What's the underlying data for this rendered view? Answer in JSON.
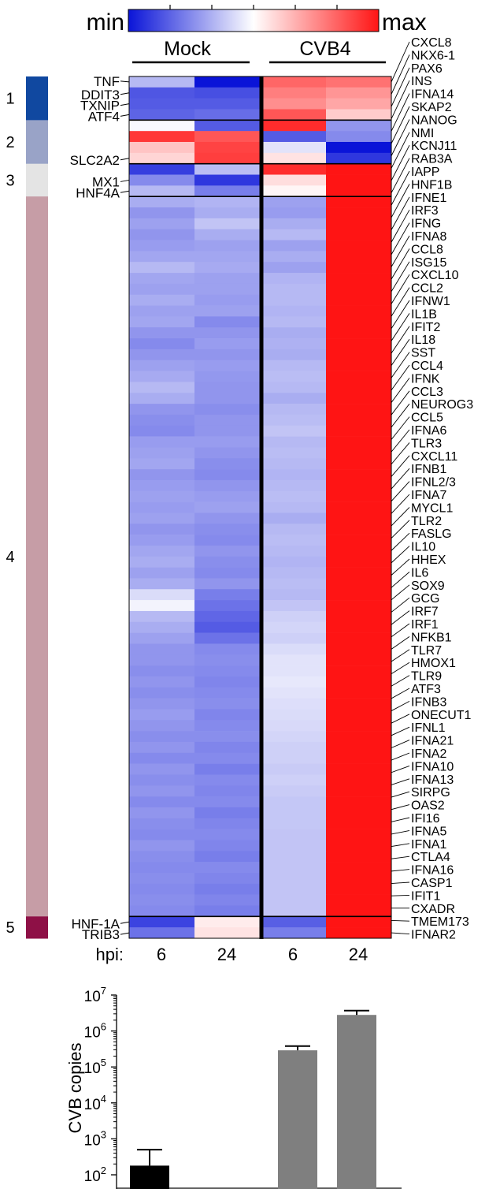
{
  "colorbar": {
    "min_label": "min",
    "max_label": "max",
    "colors": [
      "#0a14d8",
      "#ffffff",
      "#ff1414"
    ]
  },
  "heatmap": {
    "groups": [
      "Mock",
      "CVB4"
    ],
    "timepoint_label": "hpi:",
    "timepoints": [
      "6",
      "24",
      "6",
      "24"
    ],
    "clusters": [
      {
        "label": "1",
        "color": "#1048a0",
        "rows": 4
      },
      {
        "label": "2",
        "color": "#99a3c7",
        "rows": 4
      },
      {
        "label": "3",
        "color": "#e4e4e4",
        "rows": 3
      },
      {
        "label": "4",
        "color": "#c69da6",
        "rows": 66
      },
      {
        "label": "5",
        "color": "#8e1046",
        "rows": 2
      }
    ],
    "left_labels": [
      {
        "text": "TNF",
        "row": 0
      },
      {
        "text": "DDIT3",
        "row": 1
      },
      {
        "text": "TXNIP",
        "row": 2
      },
      {
        "text": "ATF4",
        "row": 3
      },
      {
        "text": "SLC2A2",
        "row": 7
      },
      {
        "text": "MX1",
        "row": 9
      },
      {
        "text": "HNF4A",
        "row": 10
      },
      {
        "text": "HNF-1A",
        "row": 77
      },
      {
        "text": "TRIB3",
        "row": 78
      }
    ],
    "right_labels": [
      "CXCL8",
      "NKX6-1",
      "PAX6",
      "INS",
      "IFNA14",
      "SKAP2",
      "NANOG",
      "NMI",
      "KCNJ11",
      "RAB3A",
      "IAPP",
      "HNF1B",
      "IFNE1",
      "IRF3",
      "IFNG",
      "IFNA8",
      "CCL8",
      "ISG15",
      "CXCL10",
      "CCL2",
      "IFNW1",
      "IL1B",
      "IFIT2",
      "IL18",
      "SST",
      "CCL4",
      "IFNK",
      "CCL3",
      "NEUROG3",
      "CCL5",
      "IFNA6",
      "TLR3",
      "CXCL11",
      "IFNB1",
      "IFNL2/3",
      "IFNA7",
      "MYCL1",
      "TLR2",
      "FASLG",
      "IL10",
      "HHEX",
      "IL6",
      "SOX9",
      "GCG",
      "IRF7",
      "IRF1",
      "NFKB1",
      "TLR7",
      "HMOX1",
      "TLR9",
      "ATF3",
      "IFNB3",
      "ONECUT1",
      "IFNL1",
      "IFNA21",
      "IFNA2",
      "IFNA10",
      "IFNA13",
      "SIRPG",
      "OAS2",
      "IFI16",
      "IFNA5",
      "IFNA1",
      "CTLA4",
      "IFNA16",
      "CASP1",
      "IFIT1",
      "CXADR",
      "TMEM173",
      "IFNAR2"
    ]
  },
  "chart_data": [
    {
      "type": "heatmap",
      "value_scale": "relative, -1 = min (blue), 0 = mid (white), 1 = max (red)",
      "columns": [
        "Mock 6",
        "Mock 24",
        "CVB4 6",
        "CVB4 24"
      ],
      "row_values": [
        [
          -0.3,
          -1.0,
          0.65,
          0.6
        ],
        [
          -0.72,
          -0.75,
          0.55,
          0.45
        ],
        [
          -0.7,
          -0.7,
          0.48,
          0.38
        ],
        [
          -0.66,
          -0.62,
          0.72,
          0.22
        ],
        [
          -0.03,
          -0.7,
          0.9,
          -0.45
        ],
        [
          0.85,
          0.72,
          -0.7,
          -0.5
        ],
        [
          0.25,
          0.8,
          -0.12,
          -1.0
        ],
        [
          0.18,
          0.82,
          0.12,
          -0.85
        ],
        [
          -0.82,
          -0.28,
          0.9,
          1.0
        ],
        [
          -0.5,
          -0.85,
          0.14,
          1.0
        ],
        [
          -0.3,
          -0.55,
          0.04,
          1.0
        ],
        [
          -0.35,
          -0.32,
          -0.4,
          1.0
        ],
        [
          -0.45,
          -0.35,
          -0.42,
          1.0
        ],
        [
          -0.4,
          -0.25,
          -0.35,
          1.0
        ],
        [
          -0.45,
          -0.35,
          -0.3,
          1.0
        ],
        [
          -0.42,
          -0.4,
          -0.4,
          1.0
        ],
        [
          -0.38,
          -0.38,
          -0.35,
          1.0
        ],
        [
          -0.3,
          -0.36,
          -0.4,
          1.0
        ],
        [
          -0.38,
          -0.4,
          -0.32,
          1.0
        ],
        [
          -0.4,
          -0.4,
          -0.3,
          1.0
        ],
        [
          -0.35,
          -0.42,
          -0.3,
          1.0
        ],
        [
          -0.4,
          -0.4,
          -0.32,
          1.0
        ],
        [
          -0.38,
          -0.5,
          -0.3,
          1.0
        ],
        [
          -0.45,
          -0.45,
          -0.35,
          1.0
        ],
        [
          -0.5,
          -0.42,
          -0.33,
          1.0
        ],
        [
          -0.45,
          -0.45,
          -0.35,
          1.0
        ],
        [
          -0.4,
          -0.42,
          -0.3,
          1.0
        ],
        [
          -0.36,
          -0.44,
          -0.28,
          1.0
        ],
        [
          -0.3,
          -0.45,
          -0.3,
          1.0
        ],
        [
          -0.35,
          -0.45,
          -0.35,
          1.0
        ],
        [
          -0.45,
          -0.48,
          -0.3,
          1.0
        ],
        [
          -0.48,
          -0.45,
          -0.28,
          1.0
        ],
        [
          -0.5,
          -0.45,
          -0.25,
          1.0
        ],
        [
          -0.42,
          -0.42,
          -0.3,
          1.0
        ],
        [
          -0.4,
          -0.45,
          -0.28,
          1.0
        ],
        [
          -0.38,
          -0.48,
          -0.3,
          1.0
        ],
        [
          -0.45,
          -0.5,
          -0.32,
          1.0
        ],
        [
          -0.42,
          -0.45,
          -0.3,
          1.0
        ],
        [
          -0.4,
          -0.42,
          -0.28,
          1.0
        ],
        [
          -0.42,
          -0.4,
          -0.3,
          1.0
        ],
        [
          -0.4,
          -0.45,
          -0.35,
          1.0
        ],
        [
          -0.45,
          -0.48,
          -0.3,
          1.0
        ],
        [
          -0.42,
          -0.5,
          -0.28,
          1.0
        ],
        [
          -0.38,
          -0.45,
          -0.3,
          1.0
        ],
        [
          -0.35,
          -0.48,
          -0.32,
          1.0
        ],
        [
          -0.4,
          -0.5,
          -0.3,
          1.0
        ],
        [
          -0.35,
          -0.45,
          -0.28,
          1.0
        ],
        [
          -0.15,
          -0.55,
          -0.3,
          1.0
        ],
        [
          -0.05,
          -0.6,
          -0.25,
          1.0
        ],
        [
          -0.3,
          -0.65,
          -0.2,
          1.0
        ],
        [
          -0.35,
          -0.7,
          -0.18,
          1.0
        ],
        [
          -0.4,
          -0.6,
          -0.2,
          1.0
        ],
        [
          -0.45,
          -0.5,
          -0.15,
          1.0
        ],
        [
          -0.45,
          -0.48,
          -0.12,
          1.0
        ],
        [
          -0.48,
          -0.5,
          -0.12,
          1.0
        ],
        [
          -0.45,
          -0.52,
          -0.1,
          1.0
        ],
        [
          -0.48,
          -0.5,
          -0.12,
          1.0
        ],
        [
          -0.45,
          -0.48,
          -0.14,
          1.0
        ],
        [
          -0.42,
          -0.52,
          -0.15,
          1.0
        ],
        [
          -0.45,
          -0.5,
          -0.16,
          1.0
        ],
        [
          -0.48,
          -0.48,
          -0.18,
          1.0
        ],
        [
          -0.45,
          -0.52,
          -0.2,
          1.0
        ],
        [
          -0.5,
          -0.5,
          -0.2,
          1.0
        ],
        [
          -0.45,
          -0.55,
          -0.22,
          1.0
        ],
        [
          -0.48,
          -0.5,
          -0.2,
          1.0
        ],
        [
          -0.45,
          -0.52,
          -0.22,
          1.0
        ],
        [
          -0.5,
          -0.5,
          -0.24,
          1.0
        ],
        [
          -0.45,
          -0.55,
          -0.24,
          1.0
        ],
        [
          -0.48,
          -0.52,
          -0.24,
          1.0
        ],
        [
          -0.5,
          -0.5,
          -0.25,
          1.0
        ],
        [
          -0.45,
          -0.52,
          -0.25,
          1.0
        ],
        [
          -0.48,
          -0.55,
          -0.25,
          1.0
        ],
        [
          -0.5,
          -0.5,
          -0.25,
          1.0
        ],
        [
          -0.48,
          -0.52,
          -0.25,
          1.0
        ],
        [
          -0.5,
          -0.55,
          -0.25,
          1.0
        ],
        [
          -0.48,
          -0.52,
          -0.25,
          1.0
        ],
        [
          -0.5,
          -0.55,
          -0.25,
          1.0
        ],
        [
          -0.8,
          0.08,
          -0.68,
          1.0
        ],
        [
          -0.6,
          0.12,
          -0.55,
          1.0
        ]
      ]
    },
    {
      "type": "bar",
      "categories": [
        "Mock 6",
        "Mock 24",
        "CVB4 6",
        "CVB4 24"
      ],
      "values": [
        180,
        null,
        290000,
        2800000
      ],
      "error_upper": [
        500,
        null,
        380000,
        3700000
      ],
      "colors": [
        "#000000",
        "#7f7f7f",
        "#7f7f7f",
        "#7f7f7f"
      ],
      "ylabel": "CVB copies",
      "yscale": "log",
      "ylim": [
        100,
        10000000
      ],
      "yticks": [
        {
          "value": 100,
          "base": "10",
          "exp": "2"
        },
        {
          "value": 1000,
          "base": "10",
          "exp": "3"
        },
        {
          "value": 10000,
          "base": "10",
          "exp": "4"
        },
        {
          "value": 100000,
          "base": "10",
          "exp": "5"
        },
        {
          "value": 1000000,
          "base": "10",
          "exp": "6"
        },
        {
          "value": 10000000,
          "base": "10",
          "exp": "7"
        }
      ]
    }
  ]
}
